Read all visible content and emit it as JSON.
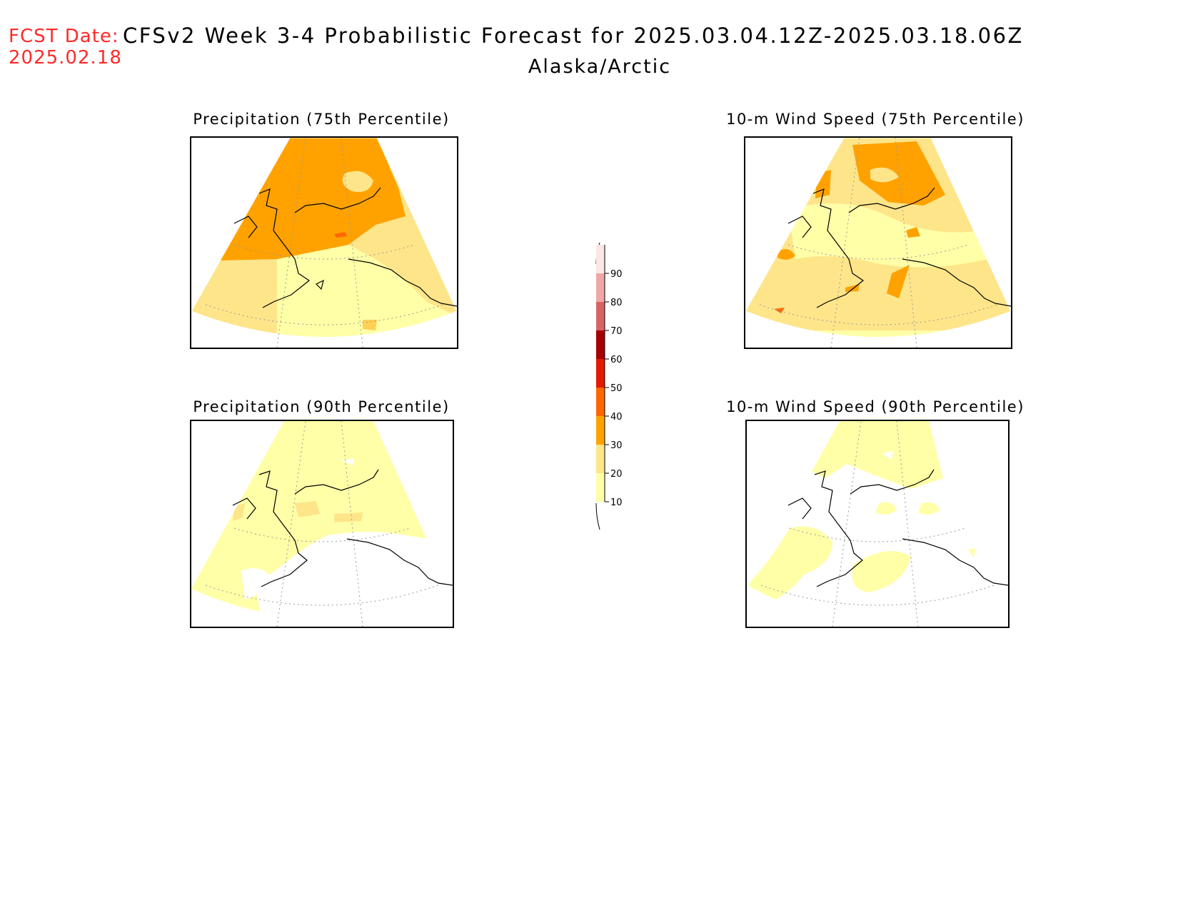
{
  "header": {
    "fcst_label": "FCST Date:",
    "fcst_date": "2025.02.18",
    "title": "CFSv2 Week 3-4 Probabilistic Forecast for 2025.03.04.12Z-2025.03.18.06Z",
    "region": "Alaska/Arctic"
  },
  "panels": [
    {
      "title": "Precipitation (75th Percentile)",
      "fill": "heavy"
    },
    {
      "title": "10-m Wind Speed (75th Percentile)",
      "fill": "medium"
    },
    {
      "title": "Precipitation (90th Percentile)",
      "fill": "light"
    },
    {
      "title": "10-m Wind Speed (90th Percentile)",
      "fill": "sparse"
    }
  ],
  "colorbar": {
    "levels": [
      {
        "label": "10",
        "color": "#ffffa8"
      },
      {
        "label": "20",
        "color": "#fee58a"
      },
      {
        "label": "30",
        "color": "#ffa200"
      },
      {
        "label": "40",
        "color": "#ff6600"
      },
      {
        "label": "50",
        "color": "#e31a00"
      },
      {
        "label": "60",
        "color": "#a50000"
      },
      {
        "label": "70",
        "color": "#d76464"
      },
      {
        "label": "80",
        "color": "#f0a6a6"
      },
      {
        "label": "90",
        "color": "#fde6e6"
      }
    ]
  }
}
